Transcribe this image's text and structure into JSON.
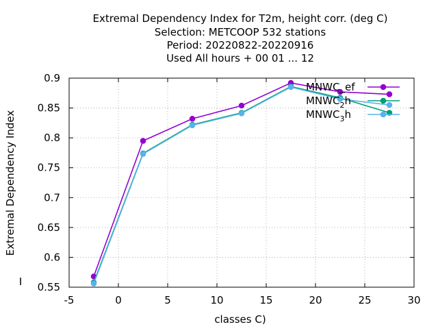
{
  "chart_data": {
    "type": "line",
    "title_lines": [
      "Extremal Dependency Index  for T2m, height corr. (deg C)",
      "Selection: METCOOP    532 stations",
      "Period: 20220822-20220916",
      "Used  All hours + 00 01 ... 12"
    ],
    "xlabel": "classes C)",
    "ylabel": "Extremal Dependency Index",
    "xlim": [
      -5,
      30
    ],
    "ylim": [
      0.55,
      0.9
    ],
    "x_ticks": [
      -5,
      0,
      5,
      10,
      15,
      20,
      25,
      30
    ],
    "x_tick_labels": [
      "-5",
      "0",
      "5",
      "10",
      "15",
      "20",
      "25",
      "30"
    ],
    "y_ticks": [
      0.55,
      0.6,
      0.65,
      0.7,
      0.75,
      0.8,
      0.85,
      0.9
    ],
    "y_tick_labels": [
      "0.55",
      "0.6",
      "0.65",
      "0.7",
      "0.75",
      "0.8",
      "0.85",
      "0.9"
    ],
    "grid": true,
    "legend_position": "top-right",
    "x": [
      -2.5,
      2.5,
      7.5,
      12.5,
      17.5,
      22.5,
      27.5
    ],
    "series": [
      {
        "name": "MNWC_ef",
        "name_main": "MNWC",
        "name_sub": "",
        "name_tail": "_ef",
        "color": "#9400d3",
        "values": [
          0.568,
          0.795,
          0.832,
          0.854,
          0.892,
          0.877,
          0.873
        ]
      },
      {
        "name": "MNWC_2h",
        "name_main": "MNWC",
        "name_sub": "2",
        "name_tail": "h",
        "color": "#009e73",
        "values": [
          0.558,
          0.774,
          0.822,
          0.842,
          0.886,
          0.867,
          0.842
        ]
      },
      {
        "name": "MNWC_3h",
        "name_main": "MNWC",
        "name_sub": "3",
        "name_tail": "h",
        "color": "#56b4e9",
        "values": [
          0.556,
          0.773,
          0.821,
          0.841,
          0.885,
          0.865,
          0.855
        ]
      }
    ]
  }
}
